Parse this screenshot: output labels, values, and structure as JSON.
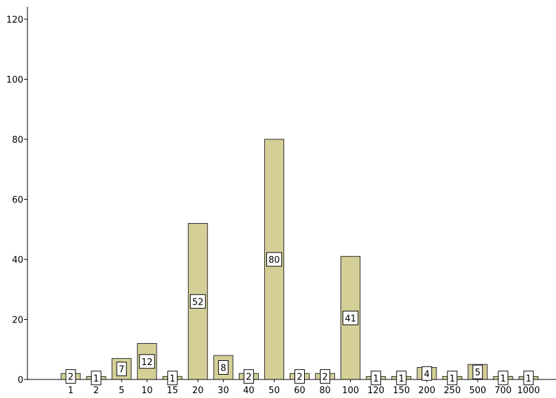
{
  "chart_data": {
    "type": "bar",
    "categories": [
      "1",
      "2",
      "5",
      "10",
      "15",
      "20",
      "30",
      "40",
      "50",
      "60",
      "80",
      "100",
      "120",
      "150",
      "200",
      "250",
      "500",
      "700",
      "1000"
    ],
    "values": [
      2,
      1,
      7,
      12,
      1,
      52,
      8,
      2,
      80,
      2,
      2,
      41,
      1,
      1,
      4,
      1,
      5,
      1,
      1
    ],
    "data_labels": [
      "2",
      "1",
      "7",
      "12",
      "1",
      "52",
      "8",
      "2",
      "80",
      "2",
      "2",
      "41",
      "1",
      "1",
      "4",
      "1",
      "5",
      "1",
      "1"
    ],
    "ylim": [
      0,
      120
    ],
    "yticks": [
      "0",
      "20",
      "40",
      "60",
      "80",
      "100",
      "120"
    ],
    "title": "",
    "xlabel": "",
    "ylabel": "",
    "grid": false,
    "colors": {
      "bar_fill": "#d4cf97",
      "bar_stroke": "#2b2b2b",
      "label_box": "#ffffff"
    }
  }
}
